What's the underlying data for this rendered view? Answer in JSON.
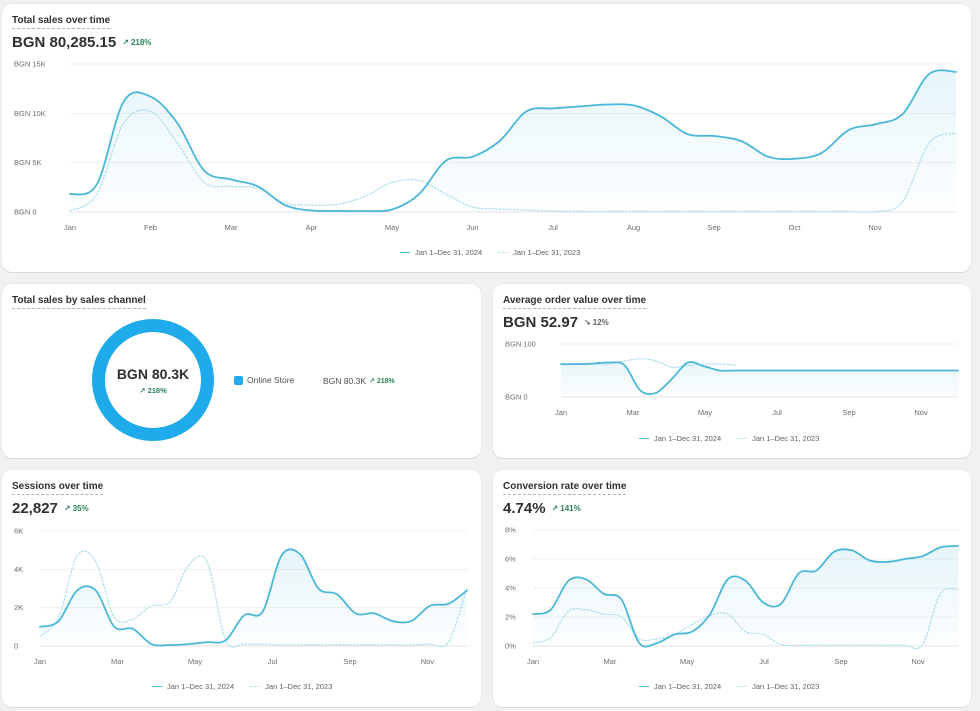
{
  "colors": {
    "primary": "#4bb7d8",
    "comparison": "#a9dcec",
    "donut": "#1eaaeb",
    "positive": "#29845a"
  },
  "total_sales": {
    "title": "Total sales over time",
    "value": "BGN 80,285.15",
    "delta": "218%",
    "delta_icon": "arrow-up-right-icon",
    "legend": [
      "Jan 1–Dec 31, 2024",
      "Jan 1–Dec 31, 2023"
    ],
    "chart_data": {
      "type": "area",
      "x_labels": [
        "Jan",
        "Feb",
        "Mar",
        "Apr",
        "May",
        "Jun",
        "Jul",
        "Aug",
        "Sep",
        "Oct",
        "Nov"
      ],
      "y_ticks": [
        "BGN 0",
        "BGN 5K",
        "BGN 10K",
        "BGN 15K"
      ],
      "ylim": [
        0,
        15000
      ],
      "series": [
        {
          "name": "Jan 1–Dec 31, 2024",
          "values": [
            1800,
            2800,
            11200,
            11700,
            9000,
            4200,
            3300,
            2600,
            700,
            150,
            100,
            100,
            250,
            1800,
            5200,
            5600,
            7200,
            10200,
            10500,
            10700,
            10900,
            10800,
            9700,
            7900,
            7700,
            7200,
            5600,
            5400,
            6000,
            8300,
            8900,
            9900,
            14000,
            14200
          ]
        },
        {
          "name": "Jan 1–Dec 31, 2023",
          "values": [
            100,
            1800,
            9000,
            10200,
            7000,
            3000,
            2600,
            2400,
            900,
            700,
            800,
            1600,
            3000,
            3200,
            1800,
            500,
            300,
            200,
            100,
            50,
            50,
            50,
            50,
            50,
            50,
            50,
            50,
            50,
            50,
            50,
            50,
            1000,
            7000,
            8000
          ]
        }
      ]
    }
  },
  "sales_channel": {
    "title": "Total sales by sales channel",
    "center_value": "BGN 80.3K",
    "center_delta": "218%",
    "channel_name": "Online Store",
    "channel_value": "BGN 80.3K",
    "channel_delta": "218%",
    "chart_data": {
      "type": "pie",
      "categories": [
        "Online Store"
      ],
      "values": [
        80300
      ]
    }
  },
  "aov": {
    "title": "Average order value over time",
    "value": "BGN 52.97",
    "delta": "12%",
    "delta_icon": "arrow-down-right-icon",
    "legend": [
      "Jan 1–Dec 31, 2024",
      "Jan 1–Dec 31, 2023"
    ],
    "chart_data": {
      "type": "line",
      "x_labels": [
        "Jan",
        "Mar",
        "May",
        "Jul",
        "Sep",
        "Nov"
      ],
      "y_ticks": [
        "BGN 0",
        "BGN 100"
      ],
      "ylim": [
        0,
        100
      ],
      "series": [
        {
          "name": "Jan 1–Dec 31, 2024",
          "values": [
            62,
            62,
            63,
            65,
            60,
            12,
            8,
            35,
            65,
            58,
            50,
            50,
            50,
            50,
            50,
            50,
            50,
            50,
            50,
            50,
            50,
            50,
            50,
            50,
            50,
            50
          ]
        },
        {
          "name": "Jan 1–Dec 31, 2023",
          "values": [
            62,
            62,
            63,
            62,
            68,
            72,
            68,
            56,
            60,
            62,
            62,
            60,
            null,
            null,
            null,
            null,
            null,
            null,
            null,
            null,
            null,
            null,
            null,
            null,
            null,
            null
          ]
        }
      ]
    }
  },
  "sessions": {
    "title": "Sessions over time",
    "value": "22,827",
    "delta": "35%",
    "delta_icon": "arrow-up-right-icon",
    "legend": [
      "Jan 1–Dec 31, 2024",
      "Jan 1–Dec 31, 2023"
    ],
    "chart_data": {
      "type": "area",
      "x_labels": [
        "Jan",
        "Mar",
        "May",
        "Jul",
        "Sep",
        "Nov"
      ],
      "y_ticks": [
        "0",
        "2K",
        "4K",
        "6K"
      ],
      "ylim": [
        0,
        6000
      ],
      "series": [
        {
          "name": "Jan 1–Dec 31, 2024",
          "values": [
            1000,
            1300,
            2900,
            2900,
            1000,
            900,
            100,
            50,
            100,
            200,
            300,
            1600,
            1800,
            4700,
            4800,
            3000,
            2700,
            1700,
            1700,
            1300,
            1300,
            2100,
            2200,
            2900
          ]
        },
        {
          "name": "Jan 1–Dec 31, 2023",
          "values": [
            500,
            1500,
            4700,
            4400,
            1500,
            1400,
            2100,
            2300,
            4200,
            4400,
            300,
            100,
            100,
            50,
            50,
            50,
            50,
            50,
            50,
            50,
            50,
            100,
            200,
            3000
          ]
        }
      ]
    }
  },
  "conversion": {
    "title": "Conversion rate over time",
    "value": "4.74%",
    "delta": "141%",
    "delta_icon": "arrow-up-right-icon",
    "legend": [
      "Jan 1–Dec 31, 2024",
      "Jan 1–Dec 31, 2023"
    ],
    "chart_data": {
      "type": "area",
      "x_labels": [
        "Jan",
        "Mar",
        "May",
        "Jul",
        "Sep",
        "Nov"
      ],
      "y_ticks": [
        "0%",
        "2%",
        "4%",
        "6%",
        "8%"
      ],
      "ylim": [
        0,
        8
      ],
      "series": [
        {
          "name": "Jan 1–Dec 31, 2024",
          "values": [
            2.2,
            2.5,
            4.5,
            4.6,
            3.6,
            3.2,
            0.2,
            0.2,
            0.8,
            1.0,
            2.2,
            4.6,
            4.5,
            3.0,
            2.9,
            5.0,
            5.2,
            6.5,
            6.6,
            5.9,
            5.8,
            6.0,
            6.2,
            6.8,
            6.9
          ]
        },
        {
          "name": "Jan 1–Dec 31, 2023",
          "values": [
            0.2,
            0.6,
            2.4,
            2.5,
            2.2,
            2.0,
            0.5,
            0.5,
            0.8,
            1.5,
            2.1,
            2.2,
            1.0,
            0.8,
            0.1,
            0.05,
            0.05,
            0.05,
            0.05,
            0.05,
            0.05,
            0.05,
            0.1,
            3.6,
            3.9
          ]
        }
      ]
    }
  }
}
